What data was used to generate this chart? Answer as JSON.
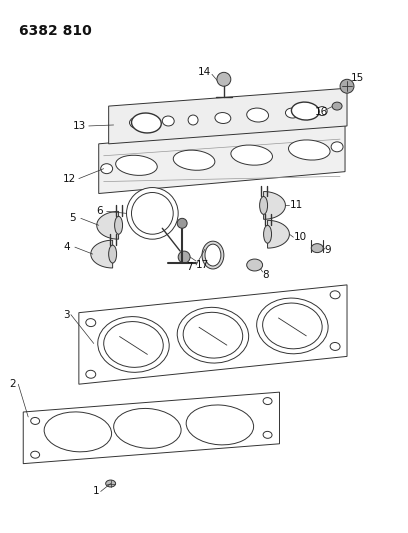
{
  "title": "6382 810",
  "bg_color": "#ffffff",
  "line_color": "#333333",
  "label_color": "#111111",
  "title_fontsize": 10,
  "label_fontsize": 7.5,
  "fig_w": 4.08,
  "fig_h": 5.33,
  "dpi": 100
}
